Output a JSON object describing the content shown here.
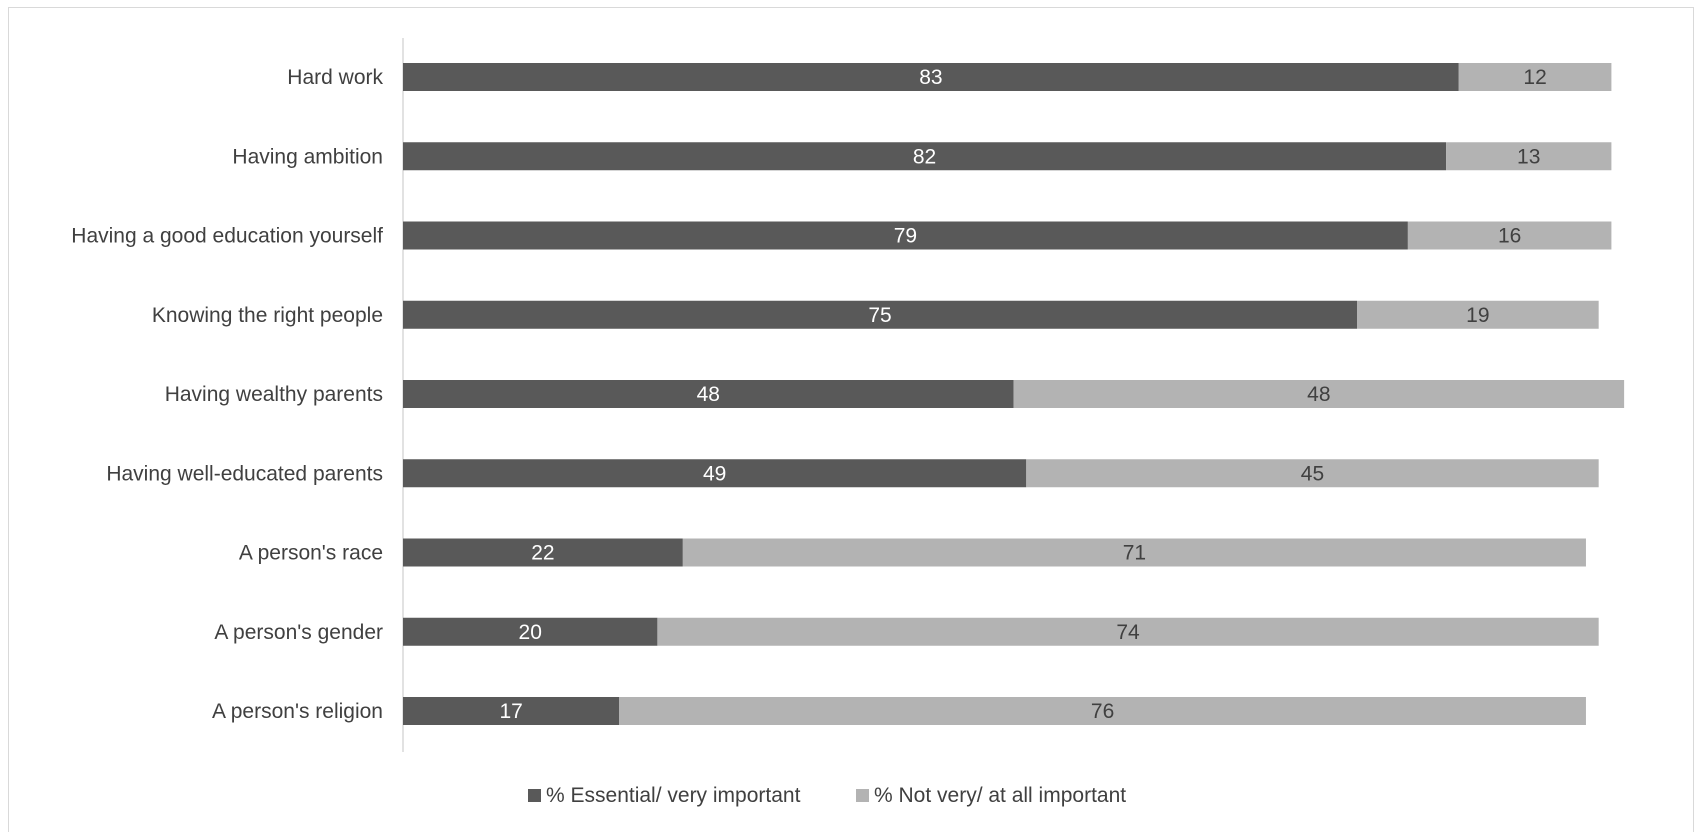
{
  "chart_data": {
    "type": "bar",
    "orientation": "horizontal",
    "stacked": true,
    "title": "",
    "xlabel": "",
    "ylabel": "",
    "categories": [
      "Hard work",
      "Having ambition",
      "Having a good education yourself",
      "Knowing the right people",
      "Having wealthy parents",
      "Having well-educated parents",
      "A person's race",
      "A person's gender",
      "A person's religion"
    ],
    "series": [
      {
        "name": "% Essential/ very important",
        "color": "#595959",
        "label_color": "#ffffff",
        "values": [
          83,
          82,
          79,
          75,
          48,
          49,
          22,
          20,
          17
        ]
      },
      {
        "name": "% Not very/ at all important",
        "color": "#b3b3b3",
        "label_color": "#404040",
        "values": [
          12,
          13,
          16,
          19,
          48,
          45,
          71,
          74,
          76
        ]
      }
    ],
    "xlim": [
      0,
      100
    ],
    "grid": false,
    "legend_position": "bottom"
  }
}
